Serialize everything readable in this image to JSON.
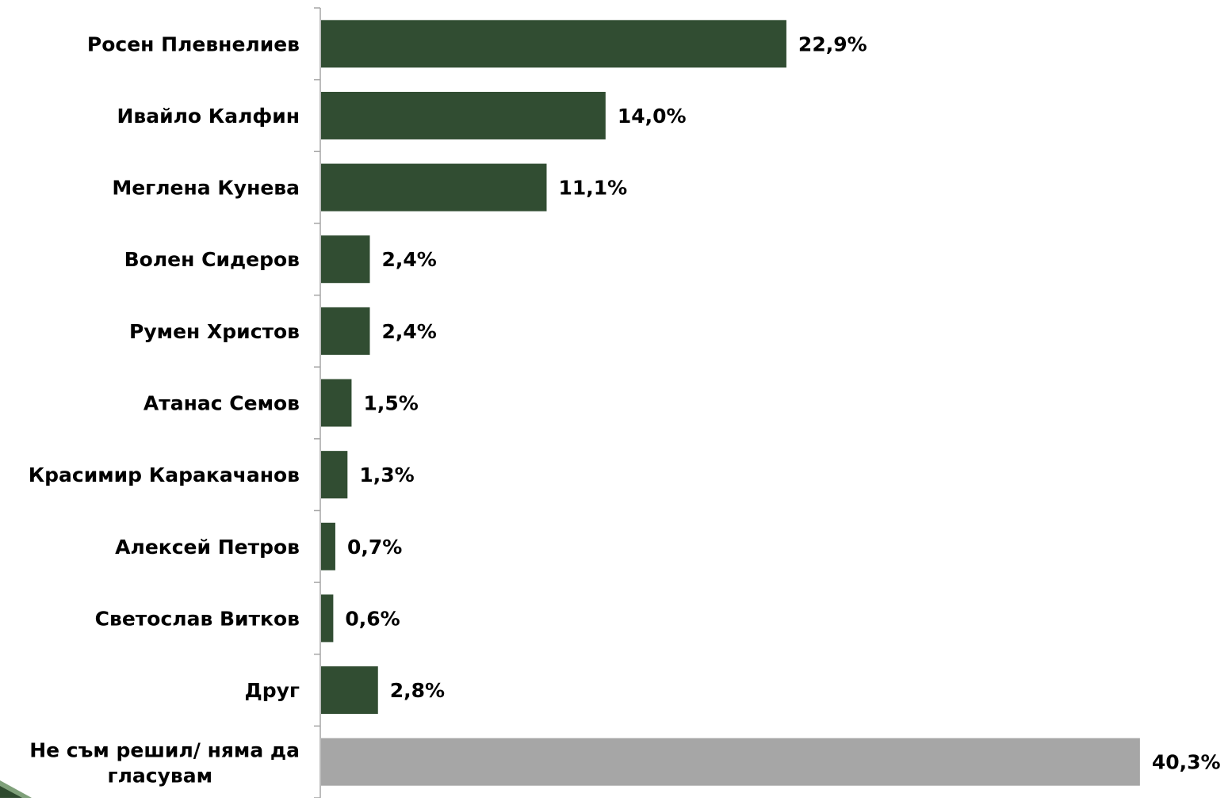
{
  "chart_data": {
    "type": "bar",
    "orientation": "horizontal",
    "unit": "%",
    "xlim": [
      0,
      41
    ],
    "grid": false,
    "legend": "none",
    "categories": [
      "Росен Плевнелиев",
      "Ивайло Калфин",
      "Меглена Кунева",
      "Волен Сидеров",
      "Румен Христов",
      "Атанас Семов",
      "Красимир Каракачанов",
      "Алексей Петров",
      "Светослав Витков",
      "Друг",
      "Не съм решил/ няма да гласувам"
    ],
    "values": [
      22.9,
      14.0,
      11.1,
      2.4,
      2.4,
      1.5,
      1.3,
      0.7,
      0.6,
      2.8,
      40.3
    ],
    "value_labels": [
      "22,9%",
      "14,0%",
      "11,1%",
      "2,4%",
      "2,4%",
      "1,5%",
      "1,3%",
      "0,7%",
      "0,6%",
      "2,8%",
      "40,3%"
    ],
    "bar_colors": [
      "#314D32",
      "#314D32",
      "#314D32",
      "#314D32",
      "#314D32",
      "#314D32",
      "#314D32",
      "#314D32",
      "#314D32",
      "#314D32",
      "#A6A6A6"
    ]
  },
  "colors": {
    "axis": "#A6A6A6",
    "text": "#000000",
    "corner_dark": "#2E4A2E",
    "corner_light": "#7FA07A"
  }
}
